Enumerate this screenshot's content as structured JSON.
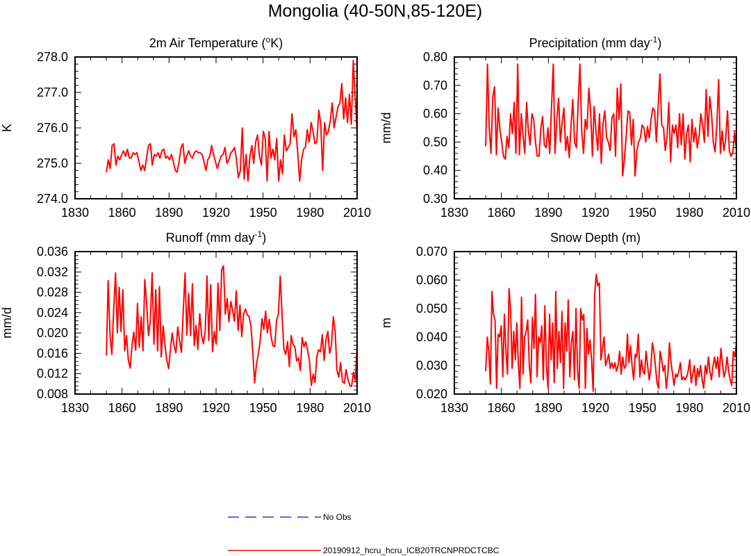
{
  "figure_title": "Mongolia (40-50N,85-120E)",
  "chart_data": [
    {
      "type": "line",
      "id": "temp",
      "title": "2m Air Temperature (",
      "title_sup": "o",
      "title_end": "K)",
      "ylabel": "K",
      "xlim": [
        1830,
        2010
      ],
      "ylim": [
        274.0,
        278.0
      ],
      "xticks": [
        "1830",
        "1860",
        "1890",
        "1920",
        "1950",
        "1980",
        "2010"
      ],
      "yticks": [
        "274.0",
        "275.0",
        "276.0",
        "277.0",
        "278.0"
      ],
      "yticks_v": [
        274,
        275,
        276,
        277,
        278
      ],
      "x_start": 1850,
      "series": [
        {
          "name": "20190912_hcru_hcru_ICB20TRCNPRDCTCBC",
          "values": [
            274.75,
            275.1,
            274.85,
            275.5,
            275.55,
            274.95,
            275.2,
            275.1,
            275.25,
            275.35,
            275.2,
            275.4,
            275.15,
            275.15,
            275.3,
            275.25,
            275.3,
            275.05,
            274.8,
            274.95,
            274.8,
            275.15,
            275.5,
            275.55,
            274.95,
            275.25,
            275.2,
            275.3,
            275.15,
            275.35,
            275.4,
            275.15,
            275.2,
            275.1,
            275.25,
            275.05,
            274.8,
            274.75,
            275.05,
            275.45,
            275.55,
            275.0,
            275.2,
            275.35,
            275.2,
            275.15,
            275.3,
            275.35,
            275.3,
            275.3,
            275.25,
            275.05,
            274.8,
            275.1,
            275.2,
            275.5,
            275.25,
            275.05,
            274.85,
            275.05,
            275.2,
            275.25,
            275.45,
            275.0,
            275.1,
            275.3,
            275.35,
            275.45,
            275.1,
            274.6,
            274.8,
            276.0,
            274.55,
            275.25,
            274.5,
            275.2,
            275.5,
            275.0,
            275.6,
            275.8,
            275.2,
            274.95,
            275.9,
            275.7,
            274.5,
            275.9,
            275.15,
            275.4,
            275.1,
            275.7,
            274.5,
            275.1,
            274.7,
            275.8,
            275.35,
            275.45,
            275.55,
            276.4,
            275.75,
            275.95,
            275.3,
            274.5,
            275.1,
            275.4,
            275.45,
            275.95,
            275.6,
            276.15,
            275.9,
            275.55,
            275.6,
            276.5,
            276.1,
            274.8,
            276.15,
            275.8,
            275.9,
            276.2,
            276.7,
            276.0,
            276.3,
            276.6,
            276.7,
            277.25,
            276.25,
            276.85,
            276.15,
            276.95,
            276.1,
            277.9,
            276.9,
            275.85
          ]
        }
      ]
    },
    {
      "type": "line",
      "id": "precip",
      "title": "Precipitation (mm day",
      "title_sup": "-1",
      "title_end": ")",
      "ylabel": "mm/d",
      "xlim": [
        1830,
        2010
      ],
      "ylim": [
        0.3,
        0.8
      ],
      "xticks": [
        "1830",
        "1860",
        "1890",
        "1920",
        "1950",
        "1980",
        "2010"
      ],
      "yticks": [
        "0.30",
        "0.40",
        "0.50",
        "0.60",
        "0.70",
        "0.80"
      ],
      "yticks_v": [
        0.3,
        0.4,
        0.5,
        0.6,
        0.7,
        0.8
      ],
      "x_start": 1850,
      "series": [
        {
          "name": "20190912_hcru_hcru_ICB20TRCNPRDCTCBC",
          "values": [
            0.485,
            0.775,
            0.55,
            0.46,
            0.66,
            0.695,
            0.455,
            0.62,
            0.545,
            0.5,
            0.45,
            0.44,
            0.52,
            0.48,
            0.6,
            0.53,
            0.64,
            0.46,
            0.775,
            0.455,
            0.6,
            0.52,
            0.46,
            0.64,
            0.54,
            0.49,
            0.6,
            0.58,
            0.5,
            0.45,
            0.45,
            0.55,
            0.59,
            0.49,
            0.48,
            0.55,
            0.46,
            0.62,
            0.775,
            0.46,
            0.58,
            0.655,
            0.5,
            0.57,
            0.62,
            0.47,
            0.52,
            0.445,
            0.56,
            0.65,
            0.5,
            0.48,
            0.635,
            0.775,
            0.54,
            0.46,
            0.58,
            0.545,
            0.69,
            0.61,
            0.45,
            0.625,
            0.54,
            0.47,
            0.6,
            0.425,
            0.565,
            0.61,
            0.515,
            0.5,
            0.47,
            0.585,
            0.6,
            0.45,
            0.69,
            0.58,
            0.705,
            0.38,
            0.44,
            0.52,
            0.61,
            0.605,
            0.49,
            0.58,
            0.38,
            0.47,
            0.5,
            0.515,
            0.56,
            0.55,
            0.5,
            0.555,
            0.515,
            0.58,
            0.62,
            0.61,
            0.5,
            0.63,
            0.74,
            0.56,
            0.55,
            0.47,
            0.52,
            0.64,
            0.43,
            0.56,
            0.53,
            0.56,
            0.48,
            0.6,
            0.49,
            0.6,
            0.44,
            0.53,
            0.56,
            0.43,
            0.58,
            0.5,
            0.55,
            0.48,
            0.52,
            0.6,
            0.56,
            0.5,
            0.685,
            0.52,
            0.66,
            0.6,
            0.5,
            0.465,
            0.56,
            0.72,
            0.46,
            0.54,
            0.47,
            0.51,
            0.61,
            0.47,
            0.45,
            0.465,
            0.535,
            0.47
          ]
        }
      ]
    },
    {
      "type": "line",
      "id": "runoff",
      "title": "Runoff (mm day",
      "title_sup": "-1",
      "title_end": ")",
      "ylabel": "mm/d",
      "xlim": [
        1830,
        2010
      ],
      "ylim": [
        0.008,
        0.036
      ],
      "xticks": [
        "1830",
        "1860",
        "1890",
        "1920",
        "1950",
        "1980",
        "2010"
      ],
      "yticks": [
        "0.008",
        "0.012",
        "0.016",
        "0.020",
        "0.024",
        "0.028",
        "0.032",
        "0.036"
      ],
      "yticks_v": [
        0.008,
        0.012,
        0.016,
        0.02,
        0.024,
        0.028,
        0.032,
        0.036
      ],
      "x_start": 1850,
      "series": [
        {
          "name": "20190912_hcru_hcru_ICB20TRCNPRDCTCBC",
          "values": [
            0.0156,
            0.0303,
            0.0196,
            0.0158,
            0.0245,
            0.0318,
            0.02,
            0.029,
            0.0203,
            0.0285,
            0.0165,
            0.0195,
            0.0147,
            0.0131,
            0.0175,
            0.0202,
            0.0166,
            0.0258,
            0.0172,
            0.0232,
            0.0165,
            0.0305,
            0.0257,
            0.0195,
            0.0222,
            0.0318,
            0.0178,
            0.0285,
            0.0165,
            0.0291,
            0.0153,
            0.0214,
            0.0178,
            0.0147,
            0.013,
            0.0168,
            0.02,
            0.0175,
            0.0161,
            0.0212,
            0.0185,
            0.0162,
            0.0242,
            0.0318,
            0.0196,
            0.0278,
            0.0195,
            0.0297,
            0.0175,
            0.0215,
            0.0168,
            0.0238,
            0.0196,
            0.0179,
            0.0203,
            0.0312,
            0.0185,
            0.0295,
            0.0163,
            0.0203,
            0.0178,
            0.0298,
            0.0205,
            0.0324,
            0.0332,
            0.0237,
            0.0268,
            0.0222,
            0.0262,
            0.0245,
            0.0223,
            0.0283,
            0.0205,
            0.0255,
            0.0193,
            0.0238,
            0.0247,
            0.0236,
            0.0232,
            0.0214,
            0.0163,
            0.0102,
            0.0138,
            0.0158,
            0.0183,
            0.0228,
            0.0207,
            0.0243,
            0.02,
            0.0227,
            0.0193,
            0.0175,
            0.0173,
            0.0225,
            0.0237,
            0.0312,
            0.0235,
            0.0168,
            0.0158,
            0.0183,
            0.0134,
            0.0195,
            0.0177,
            0.0173,
            0.0145,
            0.0151,
            0.0126,
            0.0191,
            0.0173,
            0.0183,
            0.0165,
            0.0144,
            0.0097,
            0.0119,
            0.0103,
            0.0153,
            0.0167,
            0.0163,
            0.0197,
            0.0146,
            0.0187,
            0.0203,
            0.016,
            0.0176,
            0.0232,
            0.0204,
            0.0127,
            0.0113,
            0.0142,
            0.0105,
            0.0101,
            0.0128,
            0.0109,
            0.0097,
            0.0095,
            0.0123,
            0.0106,
            0.0172
          ]
        }
      ]
    },
    {
      "type": "line",
      "id": "snow",
      "title": "Snow Depth (m)",
      "title_sup": "",
      "title_end": "",
      "ylabel": "m",
      "xlim": [
        1830,
        2010
      ],
      "ylim": [
        0.02,
        0.07
      ],
      "xticks": [
        "1830",
        "1860",
        "1890",
        "1920",
        "1950",
        "1980",
        "2010"
      ],
      "yticks": [
        "0.020",
        "0.030",
        "0.040",
        "0.050",
        "0.060",
        "0.070"
      ],
      "yticks_v": [
        0.02,
        0.03,
        0.04,
        0.05,
        0.06,
        0.07
      ],
      "x_start": 1850,
      "series": [
        {
          "name": "20190912_hcru_hcru_ICB20TRCNPRDCTCBC",
          "values": [
            0.028,
            0.04,
            0.035,
            0.0235,
            0.056,
            0.048,
            0.046,
            0.022,
            0.041,
            0.04,
            0.044,
            0.026,
            0.048,
            0.035,
            0.027,
            0.057,
            0.049,
            0.029,
            0.042,
            0.032,
            0.045,
            0.03,
            0.022,
            0.054,
            0.027,
            0.04,
            0.042,
            0.046,
            0.03,
            0.024,
            0.047,
            0.036,
            0.055,
            0.026,
            0.04,
            0.038,
            0.044,
            0.025,
            0.051,
            0.03,
            0.022,
            0.048,
            0.032,
            0.045,
            0.024,
            0.056,
            0.029,
            0.042,
            0.031,
            0.049,
            0.022,
            0.045,
            0.035,
            0.053,
            0.026,
            0.038,
            0.042,
            0.025,
            0.05,
            0.028,
            0.022,
            0.05,
            0.046,
            0.048,
            0.022,
            0.043,
            0.034,
            0.039,
            0.032,
            0.021,
            0.055,
            0.062,
            0.058,
            0.059,
            0.032,
            0.036,
            0.04,
            0.03,
            0.032,
            0.034,
            0.029,
            0.031,
            0.029,
            0.031,
            0.028,
            0.03,
            0.035,
            0.027,
            0.033,
            0.029,
            0.03,
            0.041,
            0.031,
            0.037,
            0.03,
            0.025,
            0.034,
            0.033,
            0.041,
            0.026,
            0.032,
            0.028,
            0.027,
            0.035,
            0.03,
            0.025,
            0.029,
            0.038,
            0.035,
            0.03,
            0.024,
            0.022,
            0.035,
            0.032,
            0.028,
            0.03,
            0.022,
            0.027,
            0.038,
            0.031,
            0.027,
            0.023,
            0.027,
            0.026,
            0.028,
            0.031,
            0.025,
            0.026,
            0.025,
            0.026,
            0.028,
            0.032,
            0.024,
            0.027,
            0.03,
            0.023,
            0.029,
            0.026,
            0.03,
            0.025,
            0.022,
            0.03,
            0.027,
            0.033,
            0.028,
            0.025,
            0.03,
            0.033,
            0.029,
            0.033,
            0.026,
            0.036,
            0.031,
            0.026,
            0.028,
            0.033,
            0.028,
            0.025,
            0.023,
            0.035,
            0.033,
            0.038
          ]
        }
      ]
    }
  ],
  "legend": [
    {
      "label": "No Obs",
      "color": "#3030e8",
      "style": "dashed"
    },
    {
      "label": "20190912_hcru_hcru_ICB20TRCNPRDCTCBC",
      "color": "#e81010",
      "style": "solid"
    }
  ],
  "colors": {
    "series": "#ff0000",
    "axes": "#000000",
    "noobs": "#3030e8"
  }
}
